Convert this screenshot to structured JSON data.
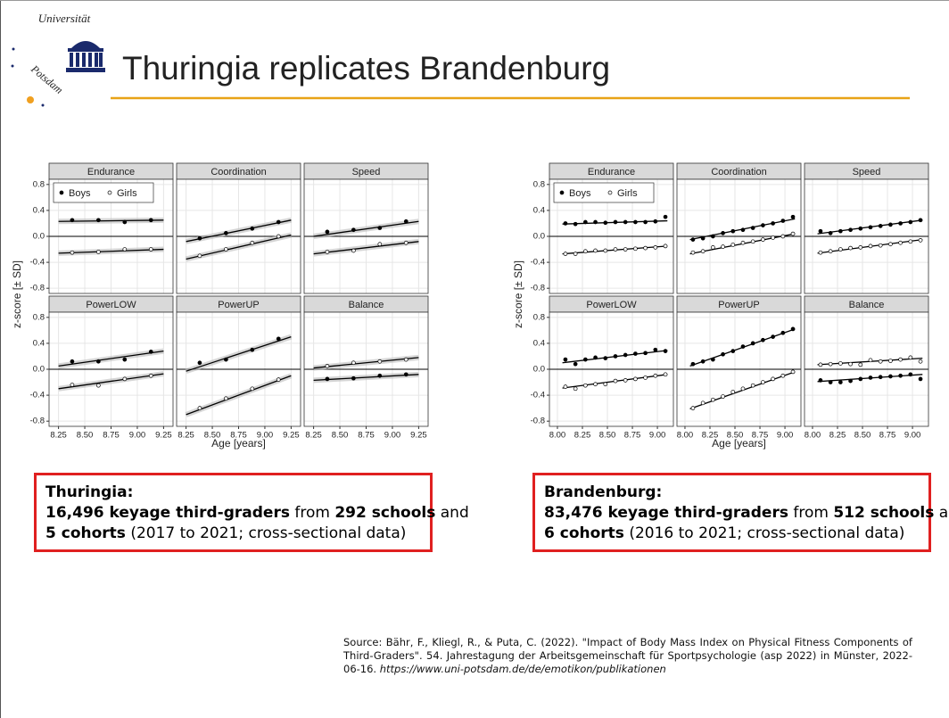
{
  "header": {
    "title": "Thuringia replicates Brandenburg",
    "logo_top": "Universität",
    "logo_bottom": "Potsdam"
  },
  "chart_data": [
    {
      "type": "scatter",
      "xlabel": "Age [years]",
      "ylabel": "z-score [± SD]",
      "xlim": [
        8.16,
        9.34
      ],
      "xticks": [
        8.25,
        {
          "value": 8.5,
          "label": "8.50"
        },
        8.75,
        {
          "value": 9,
          "label": "9.00"
        },
        9.25
      ],
      "ylim": [
        -0.88,
        0.88
      ],
      "yticks": [
        -0.8,
        -0.4,
        {
          "value": 0,
          "label": "0.0"
        },
        0.4,
        0.8
      ],
      "grid": true,
      "confidence_band": true,
      "series": [
        {
          "name": "Boys",
          "marker": "filled",
          "color": "#000000"
        },
        {
          "name": "Girls",
          "marker": "open",
          "color": "#000000"
        }
      ],
      "x": [
        8.38,
        8.63,
        8.88,
        9.13
      ],
      "fit_x": [
        8.25,
        9.25
      ],
      "facets": [
        {
          "name": "Endurance",
          "values": [
            [
              0.25,
              0.25,
              0.22,
              0.25
            ],
            [
              -0.25,
              -0.24,
              -0.2,
              -0.2
            ]
          ],
          "fit": [
            [
              0.23,
              0.25
            ],
            [
              -0.26,
              -0.2
            ]
          ]
        },
        {
          "name": "Coordination",
          "values": [
            [
              -0.03,
              0.05,
              0.12,
              0.22
            ],
            [
              -0.3,
              -0.2,
              -0.1,
              0.0
            ]
          ],
          "fit": [
            [
              -0.08,
              0.25
            ],
            [
              -0.35,
              0.02
            ]
          ]
        },
        {
          "name": "Speed",
          "values": [
            [
              0.07,
              0.1,
              0.13,
              0.23
            ],
            [
              -0.24,
              -0.22,
              -0.12,
              -0.1
            ]
          ],
          "fit": [
            [
              0.0,
              0.23
            ],
            [
              -0.27,
              -0.08
            ]
          ]
        },
        {
          "name": "PowerLOW",
          "values": [
            [
              0.12,
              0.12,
              0.15,
              0.27
            ],
            [
              -0.24,
              -0.25,
              -0.15,
              -0.1
            ]
          ],
          "fit": [
            [
              0.05,
              0.28
            ],
            [
              -0.3,
              -0.07
            ]
          ]
        },
        {
          "name": "PowerUP",
          "values": [
            [
              0.1,
              0.15,
              0.3,
              0.47
            ],
            [
              -0.6,
              -0.45,
              -0.3,
              -0.16
            ]
          ],
          "fit": [
            [
              -0.03,
              0.5
            ],
            [
              -0.7,
              -0.1
            ]
          ]
        },
        {
          "name": "Balance",
          "values": [
            [
              -0.15,
              -0.14,
              -0.1,
              -0.08
            ],
            [
              0.05,
              0.1,
              0.12,
              0.15
            ]
          ],
          "fit": [
            [
              -0.17,
              -0.08
            ],
            [
              0.02,
              0.18
            ]
          ]
        }
      ]
    },
    {
      "type": "scatter",
      "xlabel": "Age [years]",
      "ylabel": "z-score [± SD]",
      "xlim": [
        7.92,
        9.16
      ],
      "xticks": [
        {
          "value": 8,
          "label": "8.00"
        },
        8.25,
        {
          "value": 8.5,
          "label": "8.50"
        },
        8.75,
        {
          "value": 9,
          "label": "9.00"
        }
      ],
      "ylim": [
        -0.88,
        0.88
      ],
      "yticks": [
        -0.8,
        -0.4,
        {
          "value": 0,
          "label": "0.0"
        },
        0.4,
        0.8
      ],
      "grid": true,
      "confidence_band": false,
      "series": [
        {
          "name": "Boys",
          "marker": "filled",
          "color": "#000000"
        },
        {
          "name": "Girls",
          "marker": "open",
          "color": "#000000"
        }
      ],
      "x": [
        8.08,
        8.18,
        8.28,
        8.38,
        8.48,
        8.58,
        8.68,
        8.78,
        8.88,
        8.98,
        9.08
      ],
      "fit_x": [
        8.05,
        9.1
      ],
      "facets": [
        {
          "name": "Endurance",
          "values": [
            [
              0.2,
              0.19,
              0.22,
              0.22,
              0.21,
              0.22,
              0.22,
              0.22,
              0.22,
              0.23,
              0.3
            ],
            [
              -0.27,
              -0.27,
              -0.23,
              -0.22,
              -0.22,
              -0.2,
              -0.2,
              -0.19,
              -0.18,
              -0.17,
              -0.15
            ]
          ],
          "fit": [
            [
              0.19,
              0.24
            ],
            [
              -0.27,
              -0.15
            ]
          ]
        },
        {
          "name": "Coordination",
          "values": [
            [
              -0.05,
              -0.03,
              0.0,
              0.05,
              0.08,
              0.1,
              0.13,
              0.17,
              0.2,
              0.24,
              0.3
            ],
            [
              -0.25,
              -0.23,
              -0.17,
              -0.16,
              -0.13,
              -0.1,
              -0.08,
              -0.05,
              -0.02,
              0.0,
              0.04
            ]
          ],
          "fit": [
            [
              -0.05,
              0.27
            ],
            [
              -0.27,
              0.04
            ]
          ]
        },
        {
          "name": "Speed",
          "values": [
            [
              0.08,
              0.05,
              0.08,
              0.1,
              0.12,
              0.14,
              0.16,
              0.18,
              0.2,
              0.22,
              0.25
            ],
            [
              -0.25,
              -0.23,
              -0.2,
              -0.18,
              -0.17,
              -0.15,
              -0.14,
              -0.12,
              -0.1,
              -0.08,
              -0.06
            ]
          ],
          "fit": [
            [
              0.04,
              0.25
            ],
            [
              -0.26,
              -0.05
            ]
          ]
        },
        {
          "name": "PowerLOW",
          "values": [
            [
              0.15,
              0.08,
              0.15,
              0.18,
              0.17,
              0.2,
              0.22,
              0.24,
              0.25,
              0.3,
              0.28
            ],
            [
              -0.27,
              -0.3,
              -0.25,
              -0.23,
              -0.23,
              -0.18,
              -0.17,
              -0.15,
              -0.13,
              -0.1,
              -0.08
            ]
          ],
          "fit": [
            [
              0.1,
              0.29
            ],
            [
              -0.29,
              -0.08
            ]
          ]
        },
        {
          "name": "PowerUP",
          "values": [
            [
              0.08,
              0.12,
              0.15,
              0.23,
              0.28,
              0.35,
              0.4,
              0.45,
              0.5,
              0.56,
              0.62
            ],
            [
              -0.6,
              -0.52,
              -0.47,
              -0.42,
              -0.35,
              -0.3,
              -0.25,
              -0.2,
              -0.15,
              -0.1,
              -0.04
            ]
          ],
          "fit": [
            [
              0.05,
              0.62
            ],
            [
              -0.61,
              -0.04
            ]
          ]
        },
        {
          "name": "Balance",
          "values": [
            [
              -0.17,
              -0.2,
              -0.2,
              -0.18,
              -0.15,
              -0.13,
              -0.12,
              -0.11,
              -0.1,
              -0.08,
              -0.15
            ],
            [
              0.07,
              0.08,
              0.09,
              0.08,
              0.07,
              0.14,
              0.12,
              0.13,
              0.15,
              0.18,
              0.12
            ]
          ],
          "fit": [
            [
              -0.19,
              -0.08
            ],
            [
              0.07,
              0.17
            ]
          ]
        }
      ]
    }
  ],
  "boxes": [
    {
      "title": "Thuringia:",
      "lines": [
        [
          {
            "text": "16,496 keyage third-graders",
            "bold": true
          },
          {
            "text": " from ",
            "bold": false
          },
          {
            "text": "292 schools",
            "bold": true
          },
          {
            "text": " and",
            "bold": false
          }
        ],
        [
          {
            "text": "5 cohorts",
            "bold": true
          },
          {
            "text": " (2017 to 2021; cross-sectional data)",
            "bold": false
          }
        ]
      ]
    },
    {
      "title": "Brandenburg:",
      "lines": [
        [
          {
            "text": "83,476 keyage third-graders",
            "bold": true
          },
          {
            "text": " from ",
            "bold": false
          },
          {
            "text": "512 schools",
            "bold": true
          },
          {
            "text": " and",
            "bold": false
          }
        ],
        [
          {
            "text": "6 cohorts",
            "bold": true
          },
          {
            "text": " (2016 to 2021; cross-sectional data)",
            "bold": false
          }
        ]
      ]
    }
  ],
  "source": {
    "text": "Source: Bähr, F., Kliegl, R., & Puta, C. (2022). \"Impact of Body Mass Index on Physical Fitness Components of Third-Graders\". 54. Jahrestagung der Arbeitsgemeinschaft für Sportpsychologie (asp 2022) in Münster, 2022-06-16. ",
    "url": "https://www.uni-potsdam.de/de/emotikon/publikationen"
  }
}
